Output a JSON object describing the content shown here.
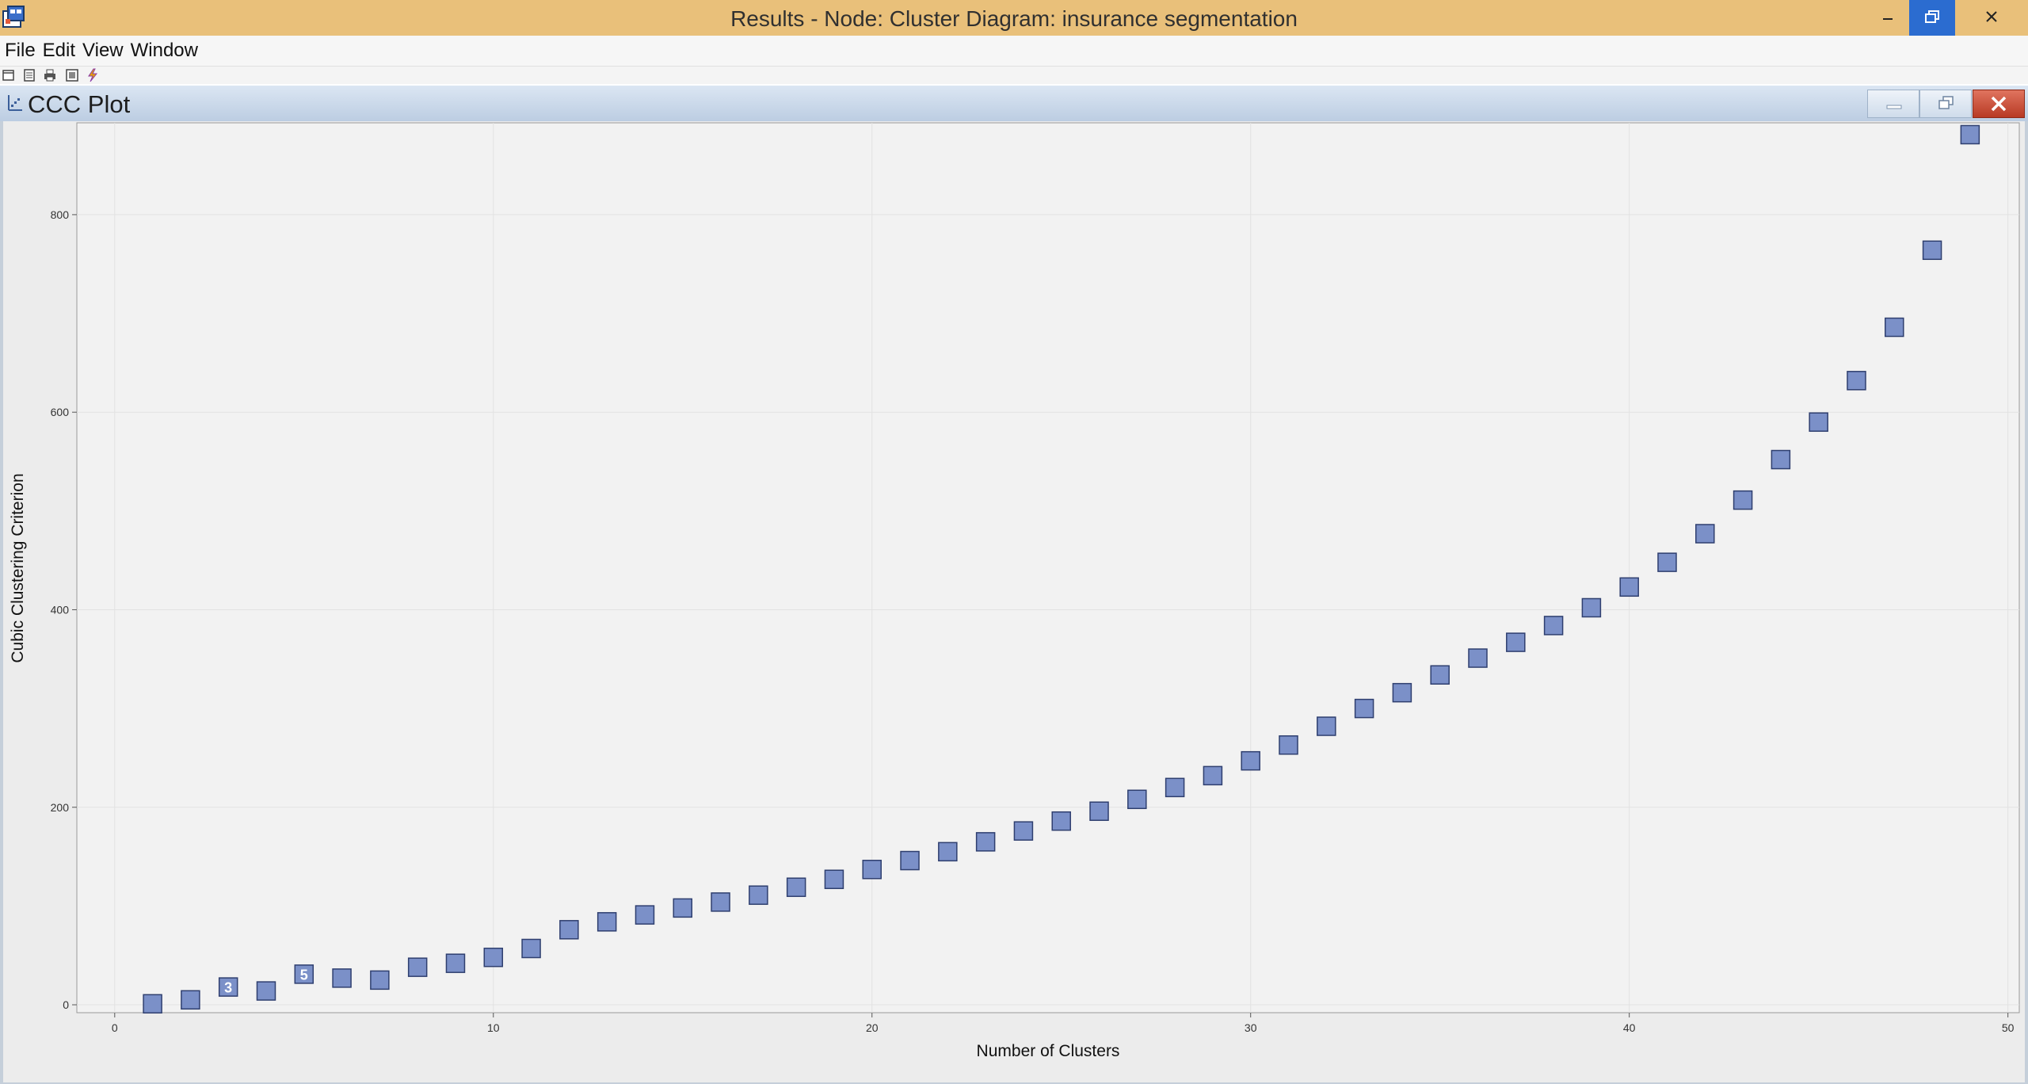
{
  "window": {
    "title": "Results - Node: Cluster  Diagram: insurance segmentation",
    "app_icon": "sas-results-icon",
    "min_icon": "minimize-icon",
    "max_icon": "maximize-icon",
    "close_icon": "close-icon"
  },
  "menu": {
    "items": [
      "File",
      "Edit",
      "View",
      "Window"
    ]
  },
  "toolbar": {
    "icons": [
      "new-window-icon",
      "properties-icon",
      "print-icon",
      "copy-icon",
      "lightning-icon"
    ]
  },
  "panel": {
    "title": "CCC Plot",
    "icon": "plot-icon"
  },
  "colors": {
    "marker_fill": "#7b90c8",
    "marker_stroke": "#2f3f6f",
    "plot_bg": "#f2f2f2",
    "grid": "#e2e2e2",
    "title_bar": "#e9c07a",
    "active_button": "#2b6cd0"
  },
  "chart_data": {
    "type": "scatter",
    "xlabel": "Number of Clusters",
    "ylabel": "Cubic Clustering Criterion",
    "xlim": [
      -1,
      50.3
    ],
    "ylim": [
      -8,
      893
    ],
    "xticks": [
      0,
      10,
      20,
      30,
      40,
      50
    ],
    "yticks": [
      0,
      200,
      400,
      600,
      800
    ],
    "grid": true,
    "legend": "none",
    "labeled_points": {
      "3": "3",
      "5": "5"
    },
    "series": [
      {
        "x": [
          1,
          2,
          3,
          4,
          5,
          6,
          7,
          8,
          9,
          10,
          11,
          12,
          13,
          14,
          15,
          16,
          17,
          18,
          19,
          20,
          21,
          22,
          23,
          24,
          25,
          26,
          27,
          28,
          29,
          30,
          31,
          32,
          33,
          34,
          35,
          36,
          37,
          38,
          39,
          40,
          41,
          42,
          43,
          44,
          45,
          46,
          47,
          48,
          49
        ],
        "y": [
          1,
          5,
          18,
          14,
          31,
          27,
          25,
          38,
          42,
          48,
          57,
          76,
          84,
          91,
          98,
          104,
          111,
          119,
          127,
          137,
          146,
          155,
          165,
          176,
          186,
          196,
          208,
          220,
          232,
          247,
          263,
          282,
          300,
          316,
          334,
          351,
          367,
          384,
          402,
          423,
          448,
          477,
          511,
          552,
          590,
          632,
          686,
          764,
          881
        ]
      }
    ]
  }
}
